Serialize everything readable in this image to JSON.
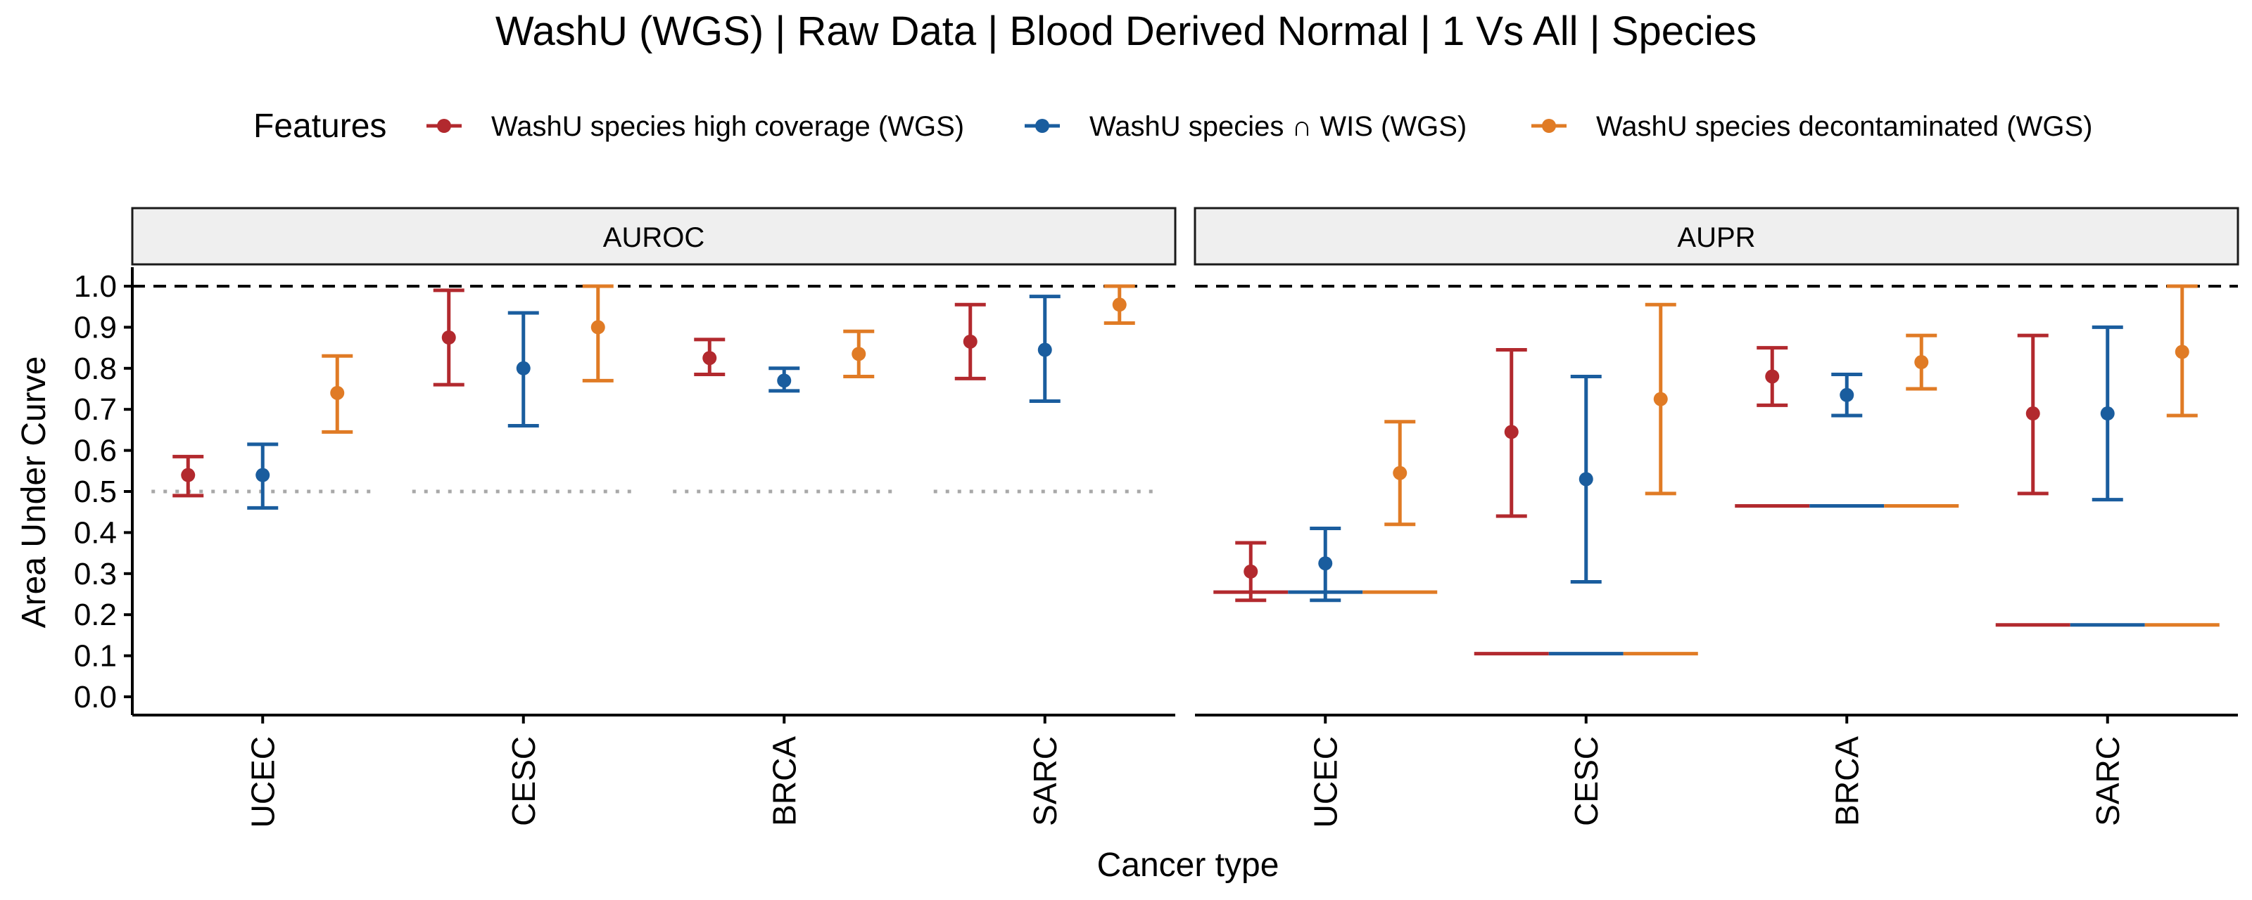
{
  "chart_data": {
    "type": "errorbar",
    "title": "WashU (WGS) | Raw Data | Blood Derived Normal | 1 Vs All | Species",
    "xlabel": "Cancer type",
    "ylabel": "Area Under Curve",
    "ylim": [
      0.0,
      1.0
    ],
    "y_ticks": [
      "0.0",
      "0.1",
      "0.2",
      "0.3",
      "0.4",
      "0.5",
      "0.6",
      "0.7",
      "0.8",
      "0.9",
      "1.0"
    ],
    "grid": false,
    "categories": [
      "UCEC",
      "CESC",
      "BRCA",
      "SARC"
    ],
    "legend": {
      "title": "Features",
      "position": "top",
      "entries": [
        "WashU species high coverage (WGS)",
        "WashU species ∩ WIS (WGS)",
        "WashU species decontaminated (WGS)"
      ]
    },
    "series_colors": [
      "#b2292e",
      "#1a5d9e",
      "#e07b25"
    ],
    "reference_line": 1.0,
    "panels": [
      {
        "name": "AUROC",
        "chance_line_style": "dotted",
        "series": [
          {
            "name": "WashU species high coverage (WGS)",
            "mean": [
              0.54,
              0.875,
              0.825,
              0.865
            ],
            "lower": [
              0.49,
              0.76,
              0.785,
              0.775
            ],
            "upper": [
              0.585,
              0.99,
              0.87,
              0.955
            ]
          },
          {
            "name": "WashU species ∩ WIS (WGS)",
            "mean": [
              0.54,
              0.8,
              0.77,
              0.845
            ],
            "lower": [
              0.46,
              0.66,
              0.745,
              0.72
            ],
            "upper": [
              0.615,
              0.935,
              0.8,
              0.975
            ]
          },
          {
            "name": "WashU species decontaminated (WGS)",
            "mean": [
              0.74,
              0.9,
              0.835,
              0.955
            ],
            "lower": [
              0.645,
              0.77,
              0.78,
              0.91
            ],
            "upper": [
              0.83,
              1.0,
              0.89,
              1.0
            ]
          }
        ],
        "chance_levels": [
          0.5,
          0.5,
          0.5,
          0.5
        ]
      },
      {
        "name": "AUPR",
        "chance_line_style": "solid",
        "series": [
          {
            "name": "WashU species high coverage (WGS)",
            "mean": [
              0.305,
              0.645,
              0.78,
              0.69
            ],
            "lower": [
              0.235,
              0.44,
              0.71,
              0.495
            ],
            "upper": [
              0.375,
              0.845,
              0.85,
              0.88
            ]
          },
          {
            "name": "WashU species ∩ WIS (WGS)",
            "mean": [
              0.325,
              0.53,
              0.735,
              0.69
            ],
            "lower": [
              0.235,
              0.28,
              0.685,
              0.48
            ],
            "upper": [
              0.41,
              0.78,
              0.785,
              0.9
            ]
          },
          {
            "name": "WashU species decontaminated (WGS)",
            "mean": [
              0.545,
              0.725,
              0.815,
              0.84
            ],
            "lower": [
              0.42,
              0.495,
              0.75,
              0.685
            ],
            "upper": [
              0.67,
              0.955,
              0.88,
              1.0
            ]
          }
        ],
        "chance_levels": [
          0.255,
          0.105,
          0.465,
          0.175
        ]
      }
    ]
  }
}
